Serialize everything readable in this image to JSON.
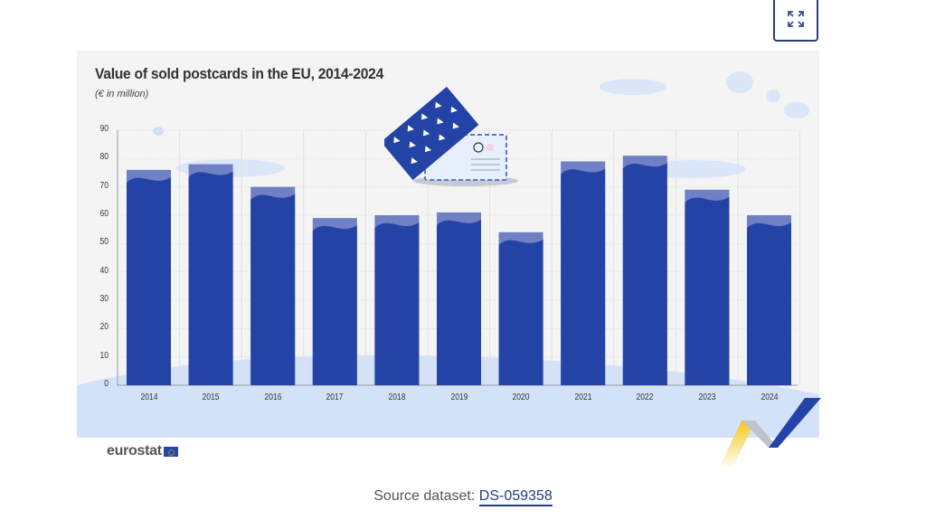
{
  "toolbar": {
    "expand_button_icon": "expand-arrows-icon"
  },
  "chart": {
    "title": "Value of sold postcards in the EU, 2014-2024",
    "subtitle": "(€ in million)"
  },
  "chart_data": {
    "type": "bar",
    "title": "Value of sold postcards in the EU, 2014-2024",
    "subtitle": "(€ in million)",
    "xlabel": "",
    "ylabel": "€ in million",
    "categories": [
      "2014",
      "2015",
      "2016",
      "2017",
      "2018",
      "2019",
      "2020",
      "2021",
      "2022",
      "2023",
      "2024"
    ],
    "values": [
      76,
      78,
      70,
      59,
      60,
      61,
      54,
      79,
      81,
      69,
      60
    ],
    "ylim": [
      0,
      90
    ],
    "yticks": [
      0,
      10,
      20,
      30,
      40,
      50,
      60,
      70,
      80,
      90
    ],
    "grid": true,
    "legend": null,
    "colors": {
      "bar": "#2443a6",
      "bar_top": "#6f80c4",
      "background": "#f4f4f4",
      "ground": "#d4e2f9"
    }
  },
  "branding": {
    "logo_text": "eurostat"
  },
  "footer": {
    "source_label": "Source dataset:",
    "source_link": "DS-059358"
  }
}
